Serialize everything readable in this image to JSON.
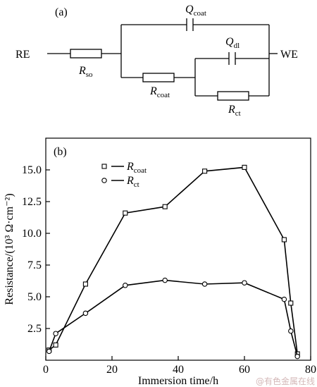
{
  "circuit": {
    "panel_label": "(a)",
    "re_label": "RE",
    "we_label": "WE",
    "r_so": {
      "base": "R",
      "sub": "so"
    },
    "q_coat": {
      "base": "Q",
      "sub": "coat"
    },
    "q_dl": {
      "base": "Q",
      "sub": "dl"
    },
    "r_coat": {
      "base": "R",
      "sub": "coat"
    },
    "r_ct": {
      "base": "R",
      "sub": "ct"
    }
  },
  "chart_data": {
    "type": "line",
    "panel_label": "(b)",
    "xlabel": "Immersion time/h",
    "ylabel": "Resistance/(10³ Ω·cm⁻²)",
    "xlim": [
      0,
      80
    ],
    "ylim": [
      0,
      17.5
    ],
    "x_ticks": [
      0,
      20,
      40,
      60,
      80
    ],
    "x_tick_labels": [
      "0",
      "20",
      "40",
      "60",
      "80"
    ],
    "y_ticks": [
      2.5,
      5.0,
      7.5,
      10.0,
      12.5,
      15.0
    ],
    "y_tick_labels": [
      "2.5",
      "5.0",
      "7.5",
      "10.0",
      "12.5",
      "15.0"
    ],
    "grid": false,
    "legend_position": "top-left",
    "series": [
      {
        "name": "R_coat",
        "legend": {
          "base": "R",
          "sub": "coat"
        },
        "marker": "square",
        "x": [
          1,
          3,
          12,
          24,
          36,
          48,
          60,
          72,
          74,
          76
        ],
        "y": [
          0.8,
          1.2,
          6.0,
          11.6,
          12.1,
          14.9,
          15.2,
          9.5,
          4.5,
          0.5
        ]
      },
      {
        "name": "R_ct",
        "legend": {
          "base": "R",
          "sub": "ct"
        },
        "marker": "circle",
        "x": [
          1,
          3,
          12,
          24,
          36,
          48,
          60,
          72,
          74,
          76
        ],
        "y": [
          0.7,
          2.1,
          3.7,
          5.9,
          6.3,
          6.0,
          6.1,
          4.8,
          2.3,
          0.3
        ]
      }
    ]
  },
  "watermark": "@有色金属在线"
}
